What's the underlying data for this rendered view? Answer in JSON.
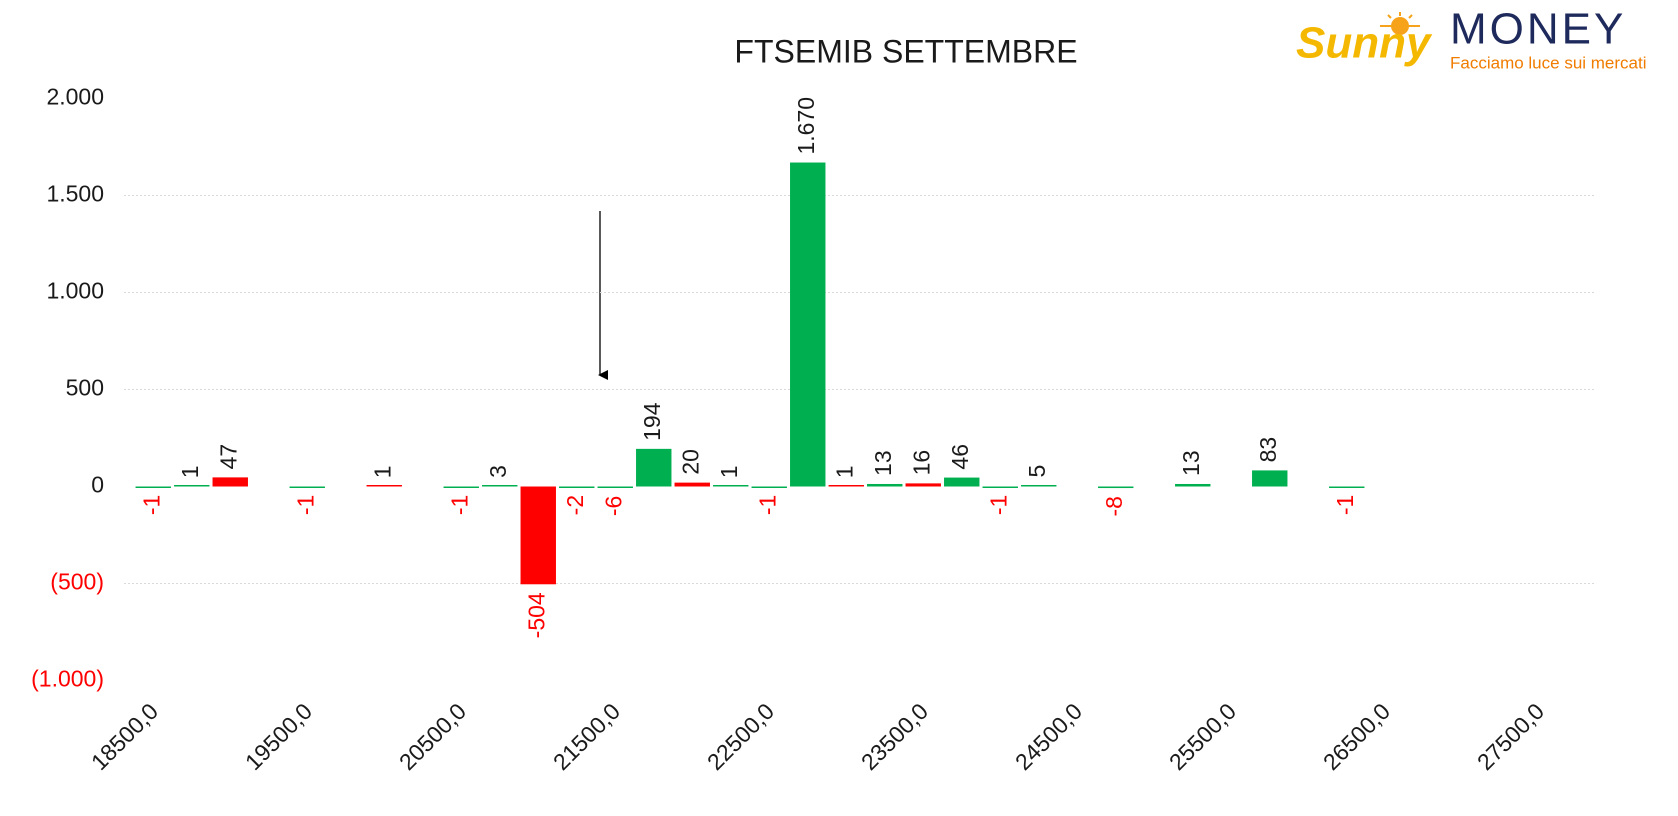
{
  "chart_data": {
    "type": "bar",
    "title": "FTSEMIB SETTEMBRE",
    "logo": {
      "brand": "Sunny",
      "name": "MONEY",
      "tagline": "Facciamo luce sui mercati"
    },
    "categories": [
      "18500,0",
      null,
      null,
      null,
      "19500,0",
      null,
      null,
      null,
      "20500,0",
      null,
      null,
      null,
      "21500,0",
      null,
      null,
      null,
      "22500,0",
      null,
      null,
      null,
      "23500,0",
      null,
      null,
      null,
      "24500,0",
      null,
      null,
      null,
      "25500,0",
      null,
      null,
      null,
      "26500,0",
      null,
      null,
      null,
      "27500,0",
      null
    ],
    "values": [
      -1,
      1,
      47,
      null,
      -1,
      null,
      1,
      null,
      -1,
      3,
      -504,
      -2,
      -6,
      194,
      20,
      1,
      -1,
      1670,
      1,
      13,
      16,
      46,
      -1,
      5,
      null,
      -8,
      null,
      13,
      null,
      83,
      null,
      -1,
      null,
      null,
      null,
      null,
      null,
      null
    ],
    "value_labels": [
      "-1",
      "1",
      "47",
      null,
      "-1",
      null,
      "1",
      null,
      "-1",
      "3",
      "-504",
      "-2",
      "-6",
      "194",
      "20",
      "1",
      "-1",
      "1.670",
      "1",
      "13",
      "16",
      "46",
      "-1",
      "5",
      null,
      "-8",
      null,
      "13",
      null,
      "83",
      null,
      "-1",
      null,
      null,
      null,
      null,
      null,
      null
    ],
    "colors": [
      "#00b050",
      "#00b050",
      "#ff0000",
      null,
      "#00b050",
      null,
      "#ff0000",
      null,
      "#00b050",
      "#00b050",
      "#ff0000",
      "#00b050",
      "#00b050",
      "#00b050",
      "#ff0000",
      "#00b050",
      "#00b050",
      "#00b050",
      "#ff0000",
      "#00b050",
      "#ff0000",
      "#00b050",
      "#00b050",
      "#00b050",
      null,
      "#00b050",
      null,
      "#00b050",
      null,
      "#00b050",
      null,
      "#00b050",
      null,
      null,
      null,
      null,
      null,
      null
    ],
    "ylim": [
      -1000,
      2000
    ],
    "yticks": [
      {
        "value": -1000,
        "label": "(1.000)"
      },
      {
        "value": -500,
        "label": "(500)"
      },
      0,
      500,
      {
        "value": 1000,
        "label": "1.000"
      },
      {
        "value": 1500,
        "label": "1.500"
      },
      {
        "value": 2000,
        "label": "2.000"
      }
    ],
    "grid": true
  }
}
